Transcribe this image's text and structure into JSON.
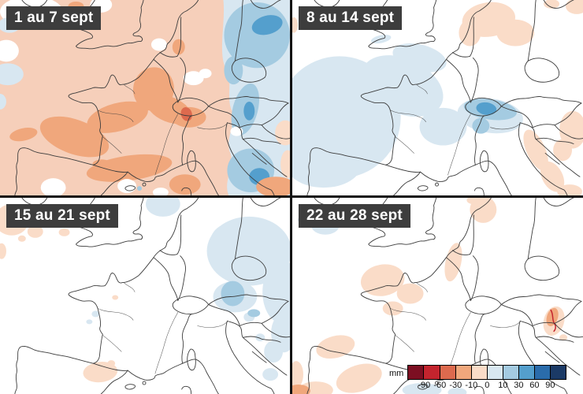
{
  "panels": [
    {
      "label": "1 au 7 sept"
    },
    {
      "label": "8 au 14 sept"
    },
    {
      "label": "15 au 21 sept"
    },
    {
      "label": "22 au 28 sept"
    }
  ],
  "colorbar": {
    "unit": "mm",
    "tick_labels": [
      "-90",
      "-60",
      "-30",
      "-10",
      "0",
      "10",
      "30",
      "60",
      "90"
    ],
    "colors": [
      "#7c0f22",
      "#c3242e",
      "#dd6a4e",
      "#f0a77c",
      "#fadcc8",
      "#d8e7f1",
      "#a4cbe1",
      "#549fcd",
      "#2a6cab",
      "#1b3a66"
    ]
  },
  "colors": {
    "coastline": "#3c3c3c",
    "label-bg": "#3d3d3d",
    "label-text": "#ffffff",
    "panel-divider": "#111111",
    "deficit-base": "#f6cfba"
  }
}
